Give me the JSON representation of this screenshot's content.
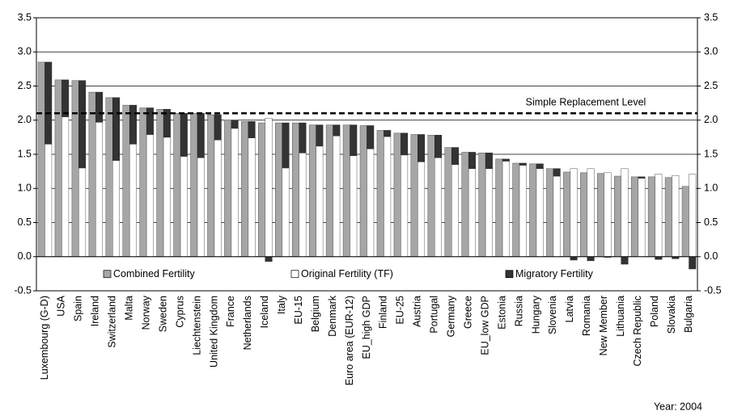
{
  "chart_data": {
    "type": "bar",
    "categories": [
      "Luxembourg (G-D)",
      "USA",
      "Spain",
      "Ireland",
      "Switzerland",
      "Malta",
      "Norway",
      "Sweden",
      "Cyprus",
      "Liechtenstein",
      "United Kingdom",
      "France",
      "Netherlands",
      "Iceland",
      "Italy",
      "EU-15",
      "Belgium",
      "Denmark",
      "Euro area (EUR-12)",
      "EU_high GDP",
      "Finland",
      "EU-25",
      "Austria",
      "Portugal",
      "Germany",
      "Greece",
      "EU_low GDP",
      "Estonia",
      "Russia",
      "Hungary",
      "Slovenia",
      "Latvia",
      "Romania",
      "New Member",
      "Lithuania",
      "Czech Republic",
      "Poland",
      "Slovakia",
      "Bulgaria"
    ],
    "series": [
      {
        "name": "Combined Fertility",
        "color": "#a6a6a6",
        "values": [
          2.85,
          2.59,
          2.58,
          2.41,
          2.33,
          2.22,
          2.18,
          2.16,
          2.1,
          2.1,
          2.08,
          2.0,
          1.98,
          1.96,
          1.96,
          1.96,
          1.93,
          1.93,
          1.93,
          1.92,
          1.85,
          1.81,
          1.79,
          1.78,
          1.6,
          1.53,
          1.52,
          1.43,
          1.37,
          1.36,
          1.29,
          1.24,
          1.23,
          1.22,
          1.18,
          1.17,
          1.17,
          1.16,
          1.03
        ]
      },
      {
        "name": "Original Fertility (TF)",
        "color": "#ffffff",
        "values": [
          1.65,
          2.05,
          1.3,
          1.97,
          1.41,
          1.65,
          1.79,
          1.75,
          1.47,
          1.45,
          1.71,
          1.88,
          1.74,
          2.03,
          1.3,
          1.52,
          1.62,
          1.77,
          1.48,
          1.58,
          1.76,
          1.49,
          1.39,
          1.45,
          1.35,
          1.29,
          1.29,
          1.4,
          1.34,
          1.29,
          1.18,
          1.29,
          1.29,
          1.23,
          1.29,
          1.15,
          1.21,
          1.19,
          1.21
        ]
      },
      {
        "name": "Migratory Fertility",
        "color": "#333333",
        "values": [
          1.2,
          0.54,
          1.28,
          0.44,
          0.92,
          0.57,
          0.39,
          0.41,
          0.63,
          0.65,
          0.37,
          0.12,
          0.24,
          -0.07,
          0.66,
          0.44,
          0.31,
          0.16,
          0.45,
          0.34,
          0.09,
          0.32,
          0.4,
          0.33,
          0.25,
          0.24,
          0.23,
          0.03,
          0.03,
          0.07,
          0.11,
          -0.05,
          -0.06,
          -0.01,
          -0.11,
          0.02,
          -0.04,
          -0.03,
          -0.18
        ]
      }
    ],
    "ylim": [
      -0.5,
      3.5
    ],
    "yticks": [
      {
        "value": -0.5,
        "label": "-0.5"
      },
      {
        "value": 0,
        "label": "0.0"
      },
      {
        "value": 0.5,
        "label": "0.5"
      },
      {
        "value": 1,
        "label": "1.0"
      },
      {
        "value": 1.5,
        "label": "1.5"
      },
      {
        "value": 2,
        "label": "2.0"
      },
      {
        "value": 2.5,
        "label": "2.5"
      },
      {
        "value": 3,
        "label": "3.0"
      },
      {
        "value": 3.5,
        "label": "3.5"
      }
    ],
    "y2lim": [
      -0.5,
      3.5
    ],
    "y2ticks": [
      {
        "value": -0.5,
        "label": "-0.5"
      },
      {
        "value": 0,
        "label": "0.0"
      },
      {
        "value": 0.5,
        "label": "0.5"
      },
      {
        "value": 1,
        "label": "1.0"
      },
      {
        "value": 1.5,
        "label": "1.5"
      },
      {
        "value": 2,
        "label": "2.0"
      },
      {
        "value": 2.5,
        "label": "2.5"
      },
      {
        "value": 3,
        "label": "3.0"
      },
      {
        "value": 3.5,
        "label": "3.5"
      }
    ],
    "grid": true,
    "reference_line": {
      "value": 2.1,
      "label": "Simple Replacement Level"
    },
    "annotation": "Year: 2004"
  }
}
